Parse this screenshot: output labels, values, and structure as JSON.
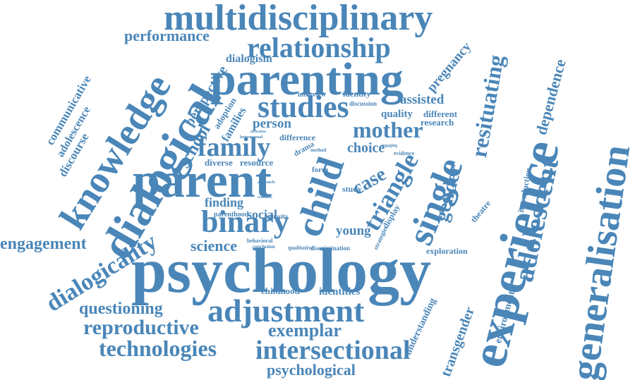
{
  "cloud": {
    "color": "#4a86b8",
    "words": [
      "multidisciplinary",
      "relationship",
      "performance",
      "dialogism",
      "parenting",
      "knowledge",
      "dialogical",
      "perspective",
      "communicative",
      "adolescence",
      "discourse",
      "studies",
      "school",
      "families",
      "adoption",
      "person",
      "mother",
      "family",
      "parent",
      "child",
      "single",
      "triangle",
      "case",
      "choice",
      "gender",
      "resituating",
      "pregnancy",
      "assisted",
      "quality",
      "different",
      "research",
      "experience",
      "dependence",
      "generalisation",
      "adolescent",
      "binary",
      "dialogicality",
      "engagement",
      "science",
      "finding",
      "social",
      "young",
      "psychology",
      "adjustment",
      "questioning",
      "reproductive",
      "technologies",
      "intersectional",
      "exemplar",
      "psychological",
      "transgender",
      "understanding",
      "environment",
      "introduction",
      "theatre",
      "exploration",
      "childhood",
      "identities",
      "identity",
      "interview",
      "discussion",
      "resource",
      "diverse",
      "drama",
      "difference",
      "parenthood",
      "minority",
      "behavioral",
      "qualitative",
      "discrimination",
      "conclusion",
      "strategies",
      "display",
      "study",
      "method",
      "form",
      "heterosexual",
      "difficulties",
      "evidence",
      "engaging",
      "approach",
      "transition"
    ]
  }
}
